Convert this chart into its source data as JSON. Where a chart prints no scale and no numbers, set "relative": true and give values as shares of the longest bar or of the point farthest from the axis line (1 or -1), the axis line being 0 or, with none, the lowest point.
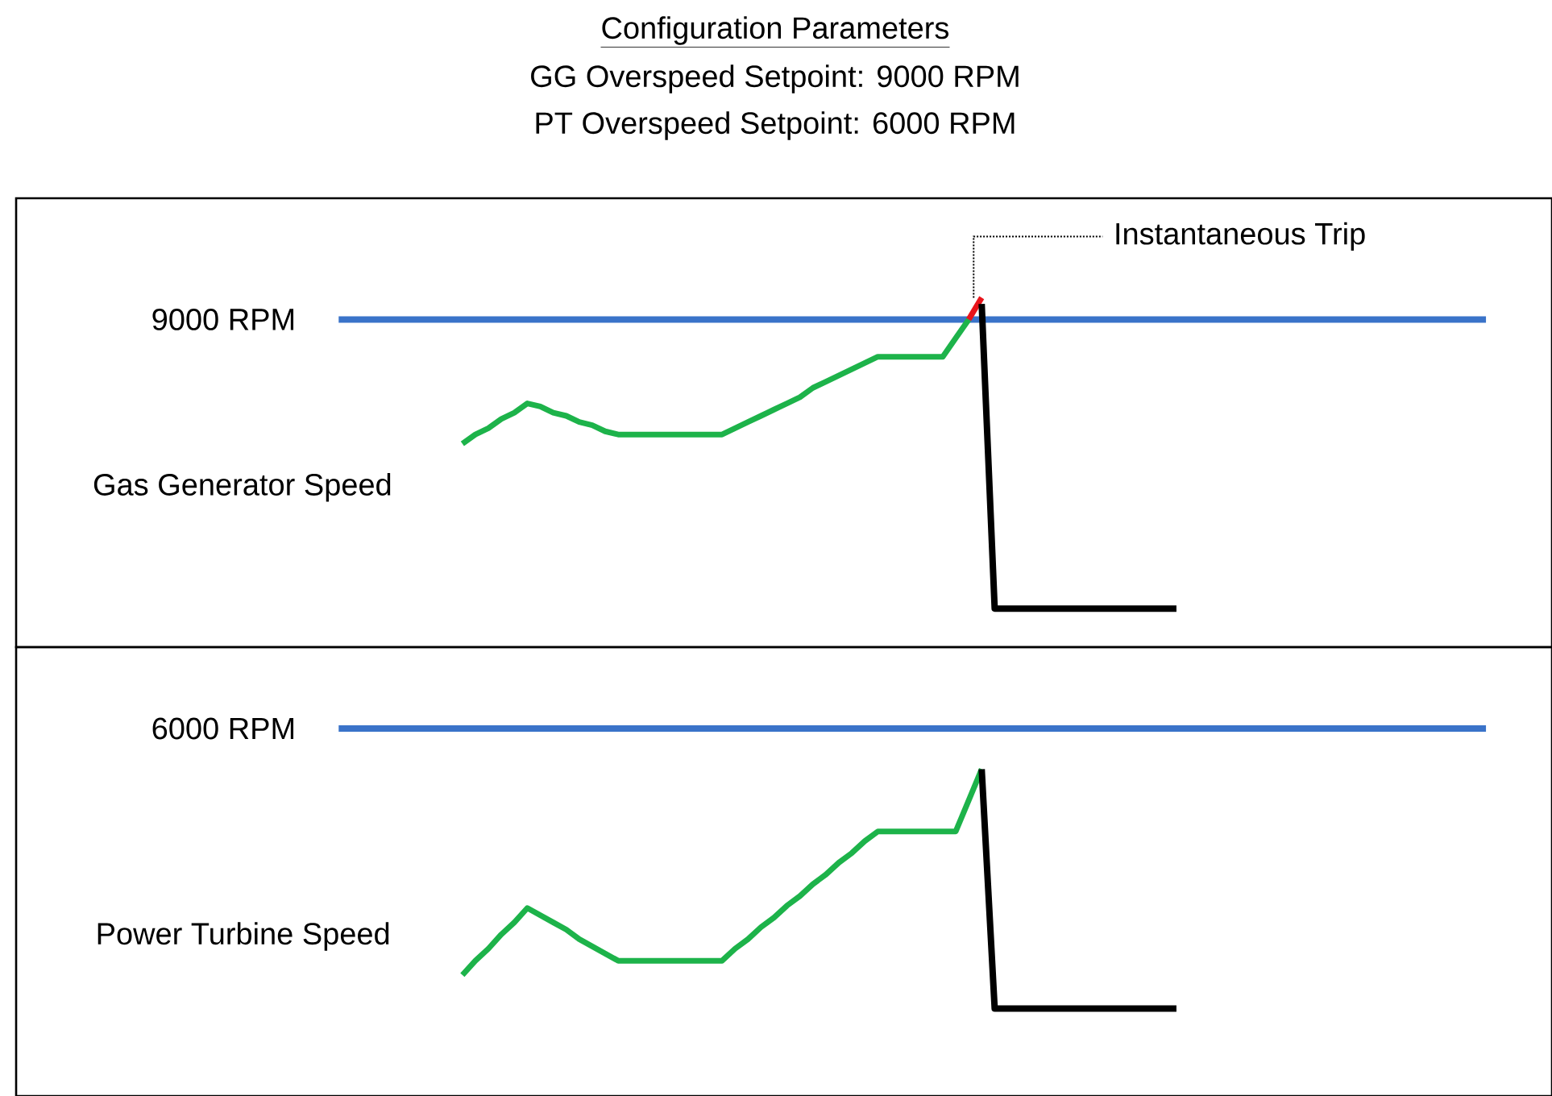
{
  "chart_data": [
    {
      "type": "other",
      "title": "Configuration Parameters",
      "annotations": [
        "GG Overspeed Setpoint: 9000 RPM",
        "PT Overspeed Setpoint: 6000 RPM"
      ]
    },
    {
      "type": "line",
      "relative": true,
      "categories": [
        null,
        null,
        null,
        null,
        null,
        null,
        null,
        null,
        null,
        null,
        null,
        null,
        null,
        null,
        null,
        null,
        null,
        null,
        null,
        null,
        null,
        null,
        null,
        null,
        null,
        null,
        null,
        null,
        null,
        null,
        null,
        null,
        null,
        null,
        null,
        null,
        null,
        null,
        null,
        null,
        null,
        null,
        null,
        null,
        null,
        null,
        null,
        null,
        null,
        null,
        null,
        null,
        null,
        null,
        null,
        null
      ],
      "series": [
        {
          "name": "Gas Generator Speed",
          "color": "#1db34a",
          "values": [
            0.53,
            0.56,
            0.58,
            0.61,
            0.63,
            0.66,
            0.65,
            0.63,
            0.62,
            0.6,
            0.59,
            0.57,
            0.56,
            0.56,
            0.56,
            0.56,
            0.56,
            0.56,
            0.56,
            0.56,
            0.56,
            0.58,
            0.6,
            0.62,
            0.64,
            0.66,
            0.68,
            0.71,
            0.73,
            0.75,
            0.77,
            0.79,
            0.81,
            0.81,
            0.81,
            0.81,
            0.81,
            0.81,
            0.87,
            0.93,
            null,
            null,
            null,
            null,
            null,
            null,
            null,
            null,
            null,
            null,
            null,
            null,
            null,
            null,
            null,
            null
          ]
        },
        {
          "color": "#e8141b",
          "values": [
            null,
            null,
            null,
            null,
            null,
            null,
            null,
            null,
            null,
            null,
            null,
            null,
            null,
            null,
            null,
            null,
            null,
            null,
            null,
            null,
            null,
            null,
            null,
            null,
            null,
            null,
            null,
            null,
            null,
            null,
            null,
            null,
            null,
            null,
            null,
            null,
            null,
            null,
            null,
            0.93,
            1.0,
            null,
            null,
            null,
            null,
            null,
            null,
            null,
            null,
            null,
            null,
            null,
            null,
            null,
            null,
            null
          ]
        },
        {
          "color": "#000000",
          "values": [
            null,
            null,
            null,
            null,
            null,
            null,
            null,
            null,
            null,
            null,
            null,
            null,
            null,
            null,
            null,
            null,
            null,
            null,
            null,
            null,
            null,
            null,
            null,
            null,
            null,
            null,
            null,
            null,
            null,
            null,
            null,
            null,
            null,
            null,
            null,
            null,
            null,
            null,
            null,
            null,
            0.98,
            0,
            0,
            0,
            0,
            0,
            0,
            0,
            0,
            0,
            0,
            0,
            0,
            0,
            0,
            0
          ]
        }
      ],
      "ref_lines": [
        {
          "axis": "y",
          "value": 0.93,
          "label": "9000 RPM",
          "color": "#3a73c9"
        }
      ],
      "annotations": [
        "Instantaneous Trip"
      ]
    },
    {
      "type": "line",
      "relative": true,
      "categories": [
        null,
        null,
        null,
        null,
        null,
        null,
        null,
        null,
        null,
        null,
        null,
        null,
        null,
        null,
        null,
        null,
        null,
        null,
        null,
        null,
        null,
        null,
        null,
        null,
        null,
        null,
        null,
        null,
        null,
        null,
        null,
        null,
        null,
        null,
        null,
        null,
        null,
        null,
        null,
        null,
        null,
        null,
        null,
        null,
        null,
        null,
        null,
        null,
        null,
        null,
        null,
        null,
        null,
        null,
        null,
        null
      ],
      "series": [
        {
          "name": "Power Turbine Speed",
          "color": "#1db34a",
          "values": [
            0.14,
            0.2,
            0.25,
            0.31,
            0.36,
            0.42,
            0.39,
            0.36,
            0.33,
            0.29,
            0.26,
            0.23,
            0.2,
            0.2,
            0.2,
            0.2,
            0.2,
            0.2,
            0.2,
            0.2,
            0.2,
            0.25,
            0.29,
            0.34,
            0.38,
            0.43,
            0.47,
            0.52,
            0.56,
            0.61,
            0.65,
            0.7,
            0.74,
            0.74,
            0.74,
            0.74,
            0.74,
            0.74,
            0.74,
            0.87,
            1.0,
            null,
            null,
            null,
            null,
            null,
            null,
            null,
            null,
            null,
            null,
            null,
            null,
            null,
            null,
            null
          ]
        },
        {
          "color": "#000000",
          "values": [
            null,
            null,
            null,
            null,
            null,
            null,
            null,
            null,
            null,
            null,
            null,
            null,
            null,
            null,
            null,
            null,
            null,
            null,
            null,
            null,
            null,
            null,
            null,
            null,
            null,
            null,
            null,
            null,
            null,
            null,
            null,
            null,
            null,
            null,
            null,
            null,
            null,
            null,
            null,
            null,
            1.0,
            0,
            0,
            0,
            0,
            0,
            0,
            0,
            0,
            0,
            0,
            0,
            0,
            0,
            0,
            0
          ]
        }
      ],
      "ref_lines": [
        {
          "axis": "y",
          "value": 1.17,
          "label": "6000 RPM",
          "color": "#3a73c9"
        }
      ]
    }
  ]
}
